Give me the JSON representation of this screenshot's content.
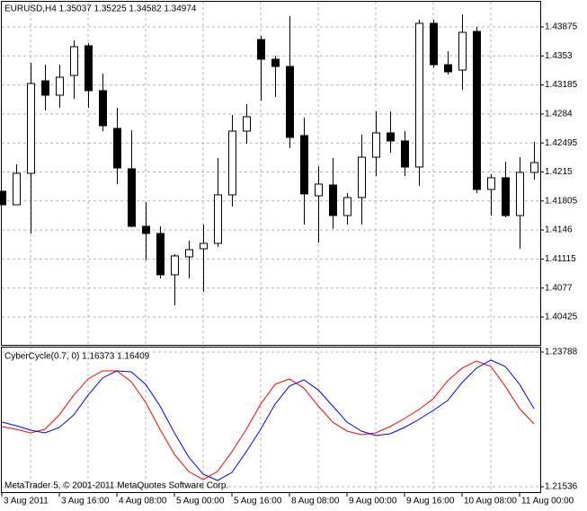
{
  "chart_data": [
    {
      "type": "candlestick",
      "title": "EURUSD,H4  1.35037 1.35225 1.34582 1.34974",
      "categories": [
        "3 Aug 2011",
        null,
        null,
        null,
        "3 Aug 16:00",
        null,
        null,
        null,
        "4 Aug 08:00",
        null,
        null,
        null,
        "5 Aug 00:00",
        null,
        null,
        null,
        "5 Aug 16:00",
        null,
        null,
        null,
        "8 Aug 08:00",
        null,
        null,
        null,
        "9 Aug 00:00",
        null,
        null,
        null,
        "9 Aug 16:00",
        null,
        null,
        null,
        "10 Aug 08:00",
        null,
        null,
        null,
        "11 Aug 00:00",
        null
      ],
      "open": [
        1.41921,
        1.4176,
        1.42134,
        1.43234,
        1.43063,
        1.43298,
        1.43651,
        1.43117,
        1.42668,
        1.42188,
        1.41504,
        1.41419,
        1.40927,
        1.41141,
        1.41237,
        1.41301,
        1.41878,
        1.42636,
        1.43725,
        1.43491,
        1.43405,
        1.42583,
        1.41867,
        1.41995,
        1.41632,
        1.41846,
        1.42326,
        1.42615,
        1.42519,
        1.42209,
        1.43918,
        1.43426,
        1.43362,
        1.43822,
        1.41942,
        1.42081,
        1.41632,
        1.42145
      ],
      "high": [
        1.41921,
        1.42241,
        1.43448,
        1.43426,
        1.43426,
        1.43715,
        1.43683,
        1.4332,
        1.42914,
        1.42647,
        1.41792,
        1.41504,
        1.41173,
        1.41333,
        1.41525,
        1.42316,
        1.42828,
        1.42957,
        1.43768,
        1.43533,
        1.44003,
        1.42796,
        1.4222,
        1.42316,
        1.41899,
        1.42593,
        1.42871,
        1.42871,
        1.42636,
        1.4396,
        1.4396,
        1.43587,
        1.44025,
        1.43875,
        1.42123,
        1.42273,
        1.42326,
        1.42508
      ],
      "low": [
        1.4176,
        1.4176,
        1.41419,
        1.42882,
        1.42914,
        1.43021,
        1.42914,
        1.42636,
        1.42006,
        1.41493,
        1.41098,
        1.40885,
        1.40564,
        1.40885,
        1.40724,
        1.41258,
        1.41739,
        1.42487,
        1.42999,
        1.43042,
        1.42433,
        1.41525,
        1.41312,
        1.41472,
        1.41525,
        1.41525,
        1.42102,
        1.4238,
        1.42102,
        1.41985,
        1.43394,
        1.43309,
        1.43127,
        1.41899,
        1.41632,
        1.41611,
        1.41237,
        1.42059
      ],
      "close": [
        1.4176,
        1.42134,
        1.43202,
        1.43063,
        1.43277,
        1.4364,
        1.43117,
        1.427,
        1.42198,
        1.41504,
        1.41419,
        1.40927,
        1.41152,
        1.41226,
        1.41301,
        1.41878,
        1.42636,
        1.42807,
        1.43491,
        1.43405,
        1.42561,
        1.41889,
        1.42006,
        1.41632,
        1.41846,
        1.42326,
        1.42615,
        1.42519,
        1.42209,
        1.43918,
        1.43426,
        1.43341,
        1.43811,
        1.41942,
        1.42081,
        1.41632,
        1.42145,
        1.42262
      ],
      "up_color": "#ffffff",
      "down_color": "#000000",
      "ylim": [
        1.40094,
        1.44174
      ],
      "yticks": [
        1.43875,
        1.4353,
        1.43185,
        1.4284,
        1.42495,
        1.4215,
        1.41805,
        1.4146,
        1.41115,
        1.4077,
        1.40425
      ],
      "grid": true
    },
    {
      "type": "line",
      "title": "CyberCycle(0.7, 0) 1.16373 1.16409",
      "series": [
        {
          "color": "#ff0000",
          "values": [
            1.22542,
            1.22497,
            1.22437,
            1.22497,
            1.22737,
            1.23067,
            1.23338,
            1.23473,
            1.23473,
            1.23293,
            1.22947,
            1.22497,
            1.22077,
            1.21791,
            1.21656,
            1.21791,
            1.22122,
            1.22497,
            1.22917,
            1.23248,
            1.23338,
            1.23187,
            1.22887,
            1.22617,
            1.22467,
            1.22407,
            1.22437,
            1.22542,
            1.22677,
            1.22827,
            1.23007,
            1.23308,
            1.23518,
            1.23638,
            1.23548,
            1.23218,
            1.22842,
            1.22587
          ]
        },
        {
          "color": "#0000ff",
          "values": [
            1.22617,
            1.22557,
            1.22482,
            1.22437,
            1.22527,
            1.22737,
            1.23067,
            1.23353,
            1.23473,
            1.23458,
            1.23248,
            1.22887,
            1.22437,
            1.22031,
            1.21746,
            1.21641,
            1.21776,
            1.22122,
            1.22497,
            1.22917,
            1.23218,
            1.23323,
            1.23157,
            1.22887,
            1.22617,
            1.22467,
            1.22392,
            1.22422,
            1.22527,
            1.22662,
            1.22812,
            1.22977,
            1.23278,
            1.23518,
            1.23653,
            1.23548,
            1.23248,
            1.22842
          ]
        }
      ],
      "ylim": [
        1.21446,
        1.23878
      ],
      "yticks": [
        1.23788,
        1.21536
      ],
      "grid": true,
      "footer": "MetaTrader 5, © 2001-2011 MetaQuotes Software Corp."
    }
  ]
}
